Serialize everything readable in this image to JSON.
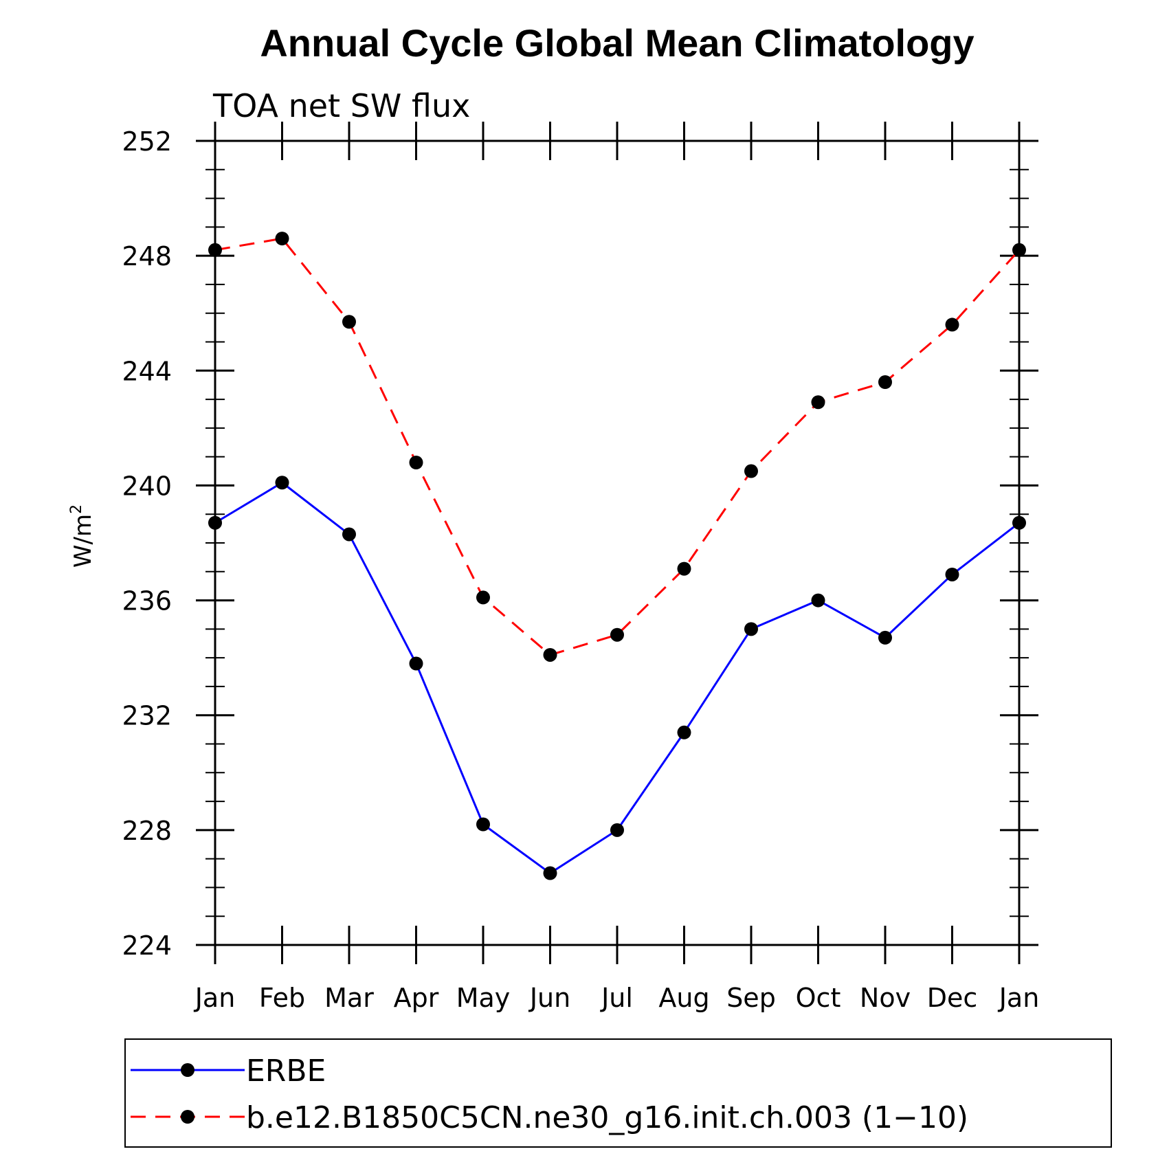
{
  "chart_data": {
    "type": "line",
    "title": "Annual Cycle Global Mean Climatology",
    "subtitle": "TOA net SW flux",
    "xlabel": "",
    "ylabel": "W/m",
    "ylabel_superscript": "2",
    "categories": [
      "Jan",
      "Feb",
      "Mar",
      "Apr",
      "May",
      "Jun",
      "Jul",
      "Aug",
      "Sep",
      "Oct",
      "Nov",
      "Dec",
      "Jan"
    ],
    "ylim": [
      224,
      252
    ],
    "yticks": [
      224,
      228,
      232,
      236,
      240,
      244,
      248,
      252
    ],
    "series": [
      {
        "name": "ERBE",
        "color": "#0000ff",
        "dash": "solid",
        "values": [
          238.7,
          240.1,
          238.3,
          233.8,
          228.2,
          226.5,
          228.0,
          231.4,
          235.0,
          236.0,
          234.7,
          236.9,
          238.7
        ]
      },
      {
        "name": "b.e12.B1850C5CN.ne30_g16.init.ch.003 (1−10)",
        "color": "#ff0000",
        "dash": "dashed",
        "values": [
          248.2,
          248.6,
          245.7,
          240.8,
          236.1,
          234.1,
          234.8,
          237.1,
          240.5,
          242.9,
          243.6,
          245.6,
          248.2
        ]
      }
    ],
    "marker_color": "#000000",
    "legend_position": "bottom"
  }
}
